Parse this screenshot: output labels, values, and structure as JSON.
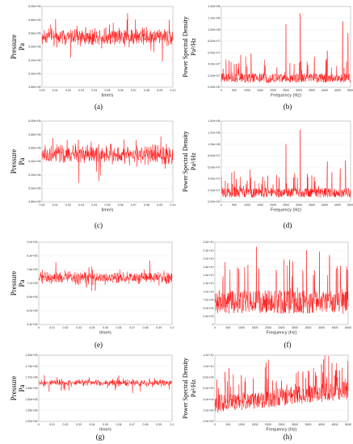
{
  "colors": {
    "series": "#ff0000",
    "axis": "#9a9a9a",
    "grid": "#e2e2e2"
  },
  "chart_data": [
    {
      "id": "a",
      "panel_label": "(a)",
      "type": "line",
      "ylabel": "Pressure",
      "yunit": "Pa",
      "xlabel": "time/s",
      "xlim": [
        0,
        0.1
      ],
      "ylim": [
        480000,
        600000
      ],
      "xticks": [
        "0.00",
        "0.01",
        "0.02",
        "0.03",
        "0.04",
        "0.05",
        "0.06",
        "0.07",
        "0.08",
        "0.09",
        "0.10"
      ],
      "yticks": [
        "4.80e+05",
        "5.00e+05",
        "5.20e+05",
        "5.40e+05",
        "5.60e+05",
        "5.80e+05",
        "6.00e+05"
      ],
      "series": [
        {
          "mean": 555000,
          "sd": 9000,
          "n": 500
        }
      ]
    },
    {
      "id": "b",
      "panel_label": "(b)",
      "type": "line",
      "ylabel": "Power Spectral Density",
      "yunit": "Pa²/Hz",
      "xlabel": "Frequency (Hz)",
      "xlim": [
        0,
        5000
      ],
      "ylim": [
        0,
        140000000
      ],
      "xticks": [
        "0",
        "500",
        "1000",
        "1500",
        "2000",
        "2500",
        "3000",
        "3500",
        "4000",
        "4500",
        "5000"
      ],
      "yticks": [
        "0.00e+00",
        "2.00e+07",
        "4.00e+07",
        "6.00e+07",
        "8.00e+07",
        "1.00e+08",
        "1.20e+08",
        "1.40e+08"
      ],
      "series": [
        {
          "base": 15000000,
          "peaks": [
            [
              500,
              40000000
            ],
            [
              750,
              60000000
            ],
            [
              1150,
              60000000
            ],
            [
              1700,
              38000000
            ],
            [
              2500,
              110000000
            ],
            [
              3050,
              133000000
            ],
            [
              3600,
              55000000
            ],
            [
              4100,
              65000000
            ],
            [
              4700,
              115000000
            ],
            [
              4900,
              95000000
            ]
          ]
        }
      ]
    },
    {
      "id": "c",
      "panel_label": "(c)",
      "type": "line",
      "ylabel": "Pressure",
      "yunit": "Pa",
      "xlabel": "time/s",
      "xlim": [
        0,
        0.1
      ],
      "ylim": [
        480000,
        600000
      ],
      "xticks": [
        "0.00",
        "0.01",
        "0.02",
        "0.03",
        "0.04",
        "0.05",
        "0.06",
        "0.07",
        "0.08",
        "0.09",
        "0.10"
      ],
      "yticks": [
        "4.80e+05",
        "5.00e+05",
        "5.20e+05",
        "5.40e+05",
        "5.60e+05",
        "5.80e+05",
        "6.00e+05"
      ],
      "series": [
        {
          "mean": 550000,
          "sd": 9500,
          "n": 500
        }
      ]
    },
    {
      "id": "d",
      "panel_label": "(d)",
      "type": "line",
      "ylabel": "Power Spectral Density",
      "yunit": "Pa²/Hz",
      "xlabel": "Frequency (Hz)",
      "xlim": [
        0,
        5000
      ],
      "ylim": [
        0,
        140000000
      ],
      "xticks": [
        "0",
        "500",
        "1000",
        "1500",
        "2000",
        "2500",
        "3000",
        "3500",
        "4000",
        "4500",
        "5000"
      ],
      "yticks": [
        "0.00e+00",
        "2.00e+07",
        "4.00e+07",
        "6.00e+07",
        "8.00e+07",
        "1.00e+08",
        "1.20e+08",
        "1.40e+08"
      ],
      "series": [
        {
          "base": 15000000,
          "peaks": [
            [
              500,
              55000000
            ],
            [
              1000,
              40000000
            ],
            [
              1600,
              45000000
            ],
            [
              2500,
              100000000
            ],
            [
              3050,
              125000000
            ],
            [
              3500,
              50000000
            ],
            [
              4100,
              72000000
            ],
            [
              4600,
              60000000
            ],
            [
              4800,
              78000000
            ]
          ]
        }
      ]
    },
    {
      "id": "e",
      "panel_label": "(e)",
      "type": "line",
      "ylabel": "Pressure",
      "yunit": "Pa",
      "xlabel": "time/s",
      "xlim": [
        0,
        0.1
      ],
      "ylim": [
        540000,
        900000
      ],
      "xticks": [
        "0",
        "0.01",
        "0.02",
        "0.03",
        "0.04",
        "0.05",
        "0.06",
        "0.07",
        "0.08",
        "0.09",
        "0.1"
      ],
      "yticks": [
        "5.4e+05",
        "6.0e+05",
        "6.6e+05",
        "7.2e+05",
        "7.8e+05",
        "8.4e+05",
        "9.0e+05"
      ],
      "series": [
        {
          "mean": 745000,
          "sd": 20000,
          "n": 500
        }
      ]
    },
    {
      "id": "f",
      "panel_label": "(f)",
      "type": "line",
      "ylabel": "",
      "yunit": "",
      "xlabel": "Frequency (Hz)",
      "xlim": [
        0,
        5000
      ],
      "ylim": [
        0,
        25000000000
      ],
      "xticks": [
        "0",
        "500",
        "1000",
        "1500",
        "2000",
        "2500",
        "3000",
        "3500",
        "4000",
        "4500",
        "5000"
      ],
      "yticks": [
        "0",
        "2.5e+09",
        "5.0e+09",
        "7.5e+09",
        "1.0e+10",
        "1.3e+10",
        "1.5e+10",
        "1.8e+10",
        "2.0e+10",
        "2.3e+10",
        "2.5e+10"
      ],
      "series": [
        {
          "base": 6500000000,
          "peaks": [
            [
              300,
              15000000000
            ],
            [
              900,
              17000000000
            ],
            [
              1650,
              18000000000
            ],
            [
              2300,
              17000000000
            ],
            [
              2800,
              20000000000
            ],
            [
              3300,
              17000000000
            ],
            [
              3700,
              16000000000
            ],
            [
              4300,
              22000000000
            ],
            [
              4600,
              18000000000
            ]
          ]
        }
      ]
    },
    {
      "id": "g",
      "panel_label": "(g)",
      "type": "line",
      "ylabel": "Pressure",
      "yunit": "Pa",
      "xlabel": "time/s",
      "xlim": [
        0,
        0.1
      ],
      "ylim": [
        1500000,
        1800000
      ],
      "xticks": [
        "0",
        "0.01",
        "0.02",
        "0.03",
        "0.04",
        "0.05",
        "0.06",
        "0.07",
        "0.08",
        "0.09",
        "0.1"
      ],
      "yticks": [
        "1.50e+06",
        "1.55e+06",
        "1.60e+06",
        "1.65e+06",
        "1.70e+06",
        "1.75e+06",
        "1.80e+06"
      ],
      "series": [
        {
          "mean": 1675000,
          "sd": 11000,
          "n": 500
        }
      ]
    },
    {
      "id": "h",
      "panel_label": "(h)",
      "type": "line",
      "ylabel": "Power Spectral Density",
      "yunit": "Pa²/Hz",
      "xlabel": "Frequency (Hz)",
      "xlim": [
        0,
        5000
      ],
      "ylim": [
        0,
        12000000000
      ],
      "xticks": [
        "0",
        "500",
        "1000",
        "1500",
        "2000",
        "2500",
        "3000",
        "3500",
        "4000",
        "4500",
        "5000"
      ],
      "yticks": [
        "0.0e+00",
        "2.0e+09",
        "4.0e+09",
        "6.0e+09",
        "8.0e+09",
        "1.0e+10",
        "1.2e+10"
      ],
      "series": [
        {
          "base": 3000000000,
          "trend": 2500000000,
          "peaks": [
            [
              2300,
              7500000000
            ],
            [
              2700,
              7000000000
            ],
            [
              3300,
              9500000000
            ],
            [
              3800,
              8500000000
            ],
            [
              4200,
              8000000000
            ],
            [
              4600,
              8000000000
            ],
            [
              4850,
              7500000000
            ]
          ]
        }
      ]
    }
  ]
}
